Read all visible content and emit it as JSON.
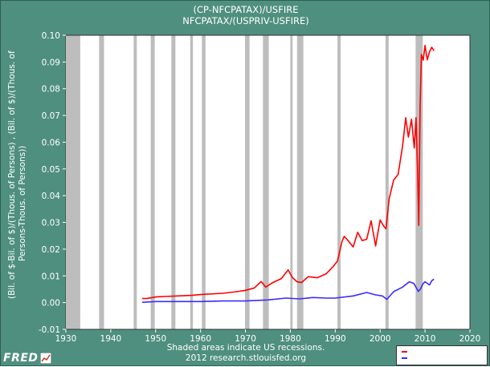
{
  "titles": {
    "line1": "(CP-NFCPATAX)/USFIRE",
    "line2": "NFCPATAX/(USPRIV-USFIRE)"
  },
  "ylabel": {
    "line1": "(Bil. of $-Bil. of $)/(Thous. of Persons) , (Bil. of $)/(Thous. of",
    "line2": "Persons-Thous. of Persons))"
  },
  "footer": {
    "line1": "Shaded areas indicate US recessions.",
    "line2": "2012 research.stlouisfed.org"
  },
  "logo": {
    "text": "FRED"
  },
  "colors": {
    "background": "#4f8f7f",
    "plot_bg": "#ffffff",
    "recession": "#bdbdbd",
    "series1": "#ff0000",
    "series2": "#3b2bff"
  },
  "chart_data": {
    "type": "line",
    "title": "(CP-NFCPATAX)/USFIRE / NFCPATAX/(USPRIV-USFIRE)",
    "xlabel": "",
    "ylabel": "(Bil. of $-Bil. of $)/(Thous. of Persons) , (Bil. of $)/(Thous. of Persons-Thous. of Persons))",
    "xlim": [
      1930,
      2020
    ],
    "ylim": [
      -0.01,
      0.1
    ],
    "xticks": [
      1930,
      1940,
      1950,
      1960,
      1970,
      1980,
      1990,
      2000,
      2010,
      2020
    ],
    "xtick_labels": [
      "1930",
      "1940",
      "1950",
      "1960",
      "1970",
      "1980",
      "1990",
      "2000",
      "2010",
      "2020"
    ],
    "yticks": [
      -0.01,
      0.0,
      0.01,
      0.02,
      0.03,
      0.04,
      0.05,
      0.06,
      0.07,
      0.08,
      0.09,
      0.1
    ],
    "ytick_labels": [
      "-0.01",
      "0.00",
      "0.01",
      "0.02",
      "0.03",
      "0.04",
      "0.05",
      "0.06",
      "0.07",
      "0.08",
      "0.09",
      "0.10"
    ],
    "recessions": [
      [
        1929.7,
        1933.2
      ],
      [
        1937.4,
        1938.5
      ],
      [
        1945.1,
        1945.8
      ],
      [
        1948.9,
        1949.8
      ],
      [
        1953.5,
        1954.4
      ],
      [
        1957.7,
        1958.3
      ],
      [
        1960.3,
        1961.1
      ],
      [
        1969.9,
        1970.9
      ],
      [
        1973.9,
        1975.2
      ],
      [
        1980.0,
        1980.5
      ],
      [
        1981.5,
        1982.9
      ],
      [
        1990.5,
        1991.2
      ],
      [
        2001.2,
        2001.9
      ],
      [
        2007.9,
        2009.5
      ]
    ],
    "series": [
      {
        "name": "(CP-NFCPATAX)/USFIRE",
        "x": [
          1947,
          1948,
          1950,
          1952,
          1955,
          1958,
          1960,
          1965,
          1968,
          1970,
          1972,
          1973.5,
          1974.5,
          1976,
          1978,
          1979.5,
          1980.5,
          1981.5,
          1982.5,
          1984,
          1986,
          1988,
          1989.5,
          1990.5,
          1991.5,
          1992,
          1993,
          1994,
          1995,
          1996,
          1997,
          1998,
          1999,
          2000,
          2000.7,
          2001.3,
          2002,
          2003,
          2004,
          2005,
          2005.7,
          2006.3,
          2007,
          2007.6,
          2008,
          2008.3,
          2008.6,
          2008.9,
          2009.2,
          2009.6,
          2010,
          2010.5,
          2011,
          2011.5,
          2012
        ],
        "values": [
          0.0015,
          0.0015,
          0.0021,
          0.0023,
          0.0025,
          0.0027,
          0.003,
          0.0035,
          0.0041,
          0.0046,
          0.0055,
          0.0079,
          0.0058,
          0.0074,
          0.009,
          0.0122,
          0.0093,
          0.0078,
          0.0075,
          0.0097,
          0.0093,
          0.0108,
          0.0134,
          0.0155,
          0.0228,
          0.0248,
          0.0229,
          0.0208,
          0.0263,
          0.0232,
          0.0237,
          0.0306,
          0.0212,
          0.0309,
          0.0289,
          0.0276,
          0.0388,
          0.0458,
          0.0479,
          0.0586,
          0.0692,
          0.0619,
          0.0686,
          0.0578,
          0.0692,
          0.0521,
          0.0289,
          0.0734,
          0.0928,
          0.0907,
          0.0962,
          0.0908,
          0.0938,
          0.0955,
          0.0942
        ]
      },
      {
        "name": "NFCPATAX/(USPRIV-USFIRE)",
        "x": [
          1947,
          1950,
          1955,
          1960,
          1965,
          1970,
          1975,
          1979,
          1982,
          1985,
          1988,
          1990,
          1994,
          1997,
          1999,
          2000.5,
          2001.5,
          2003,
          2005,
          2006.5,
          2007.5,
          2008.5,
          2009,
          2009.5,
          2010,
          2011,
          2011.5,
          2012
        ],
        "values": [
          0.0001,
          0.0004,
          0.0004,
          0.0004,
          0.0006,
          0.0006,
          0.001,
          0.0017,
          0.0014,
          0.0019,
          0.0017,
          0.0017,
          0.0025,
          0.0038,
          0.0029,
          0.0025,
          0.0012,
          0.0041,
          0.0058,
          0.0078,
          0.0072,
          0.0042,
          0.0051,
          0.0069,
          0.0078,
          0.0066,
          0.0082,
          0.0088
        ]
      }
    ]
  }
}
